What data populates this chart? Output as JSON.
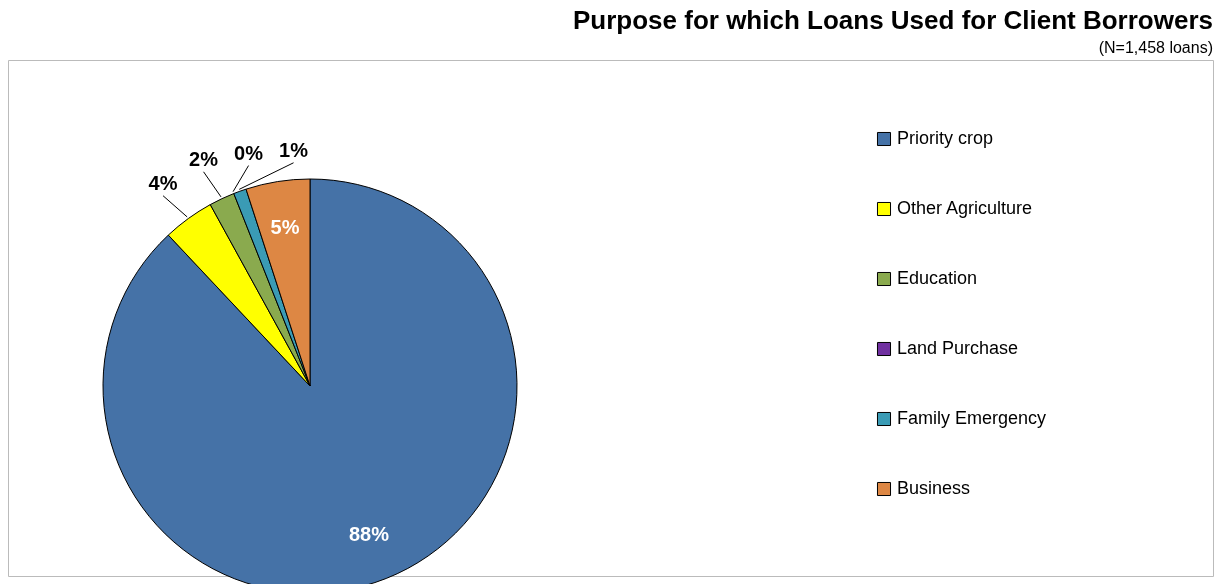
{
  "chart_data": {
    "type": "pie",
    "title": "Purpose for which Loans Used for Client Borrowers",
    "subtitle": "(N=1,458 loans)",
    "categories": [
      "Priority crop",
      "Other Agriculture",
      "Education",
      "Land Purchase",
      "Family Emergency",
      "Business"
    ],
    "values": [
      88,
      4,
      2,
      0,
      1,
      5
    ],
    "colors": [
      "#4572a7",
      "#ffff00",
      "#8aaa4e",
      "#7030a0",
      "#3a9bb5",
      "#dd8744"
    ],
    "value_labels": [
      "88%",
      "4%",
      "2%",
      "0%",
      "1%",
      "5%"
    ],
    "legend": "right"
  }
}
